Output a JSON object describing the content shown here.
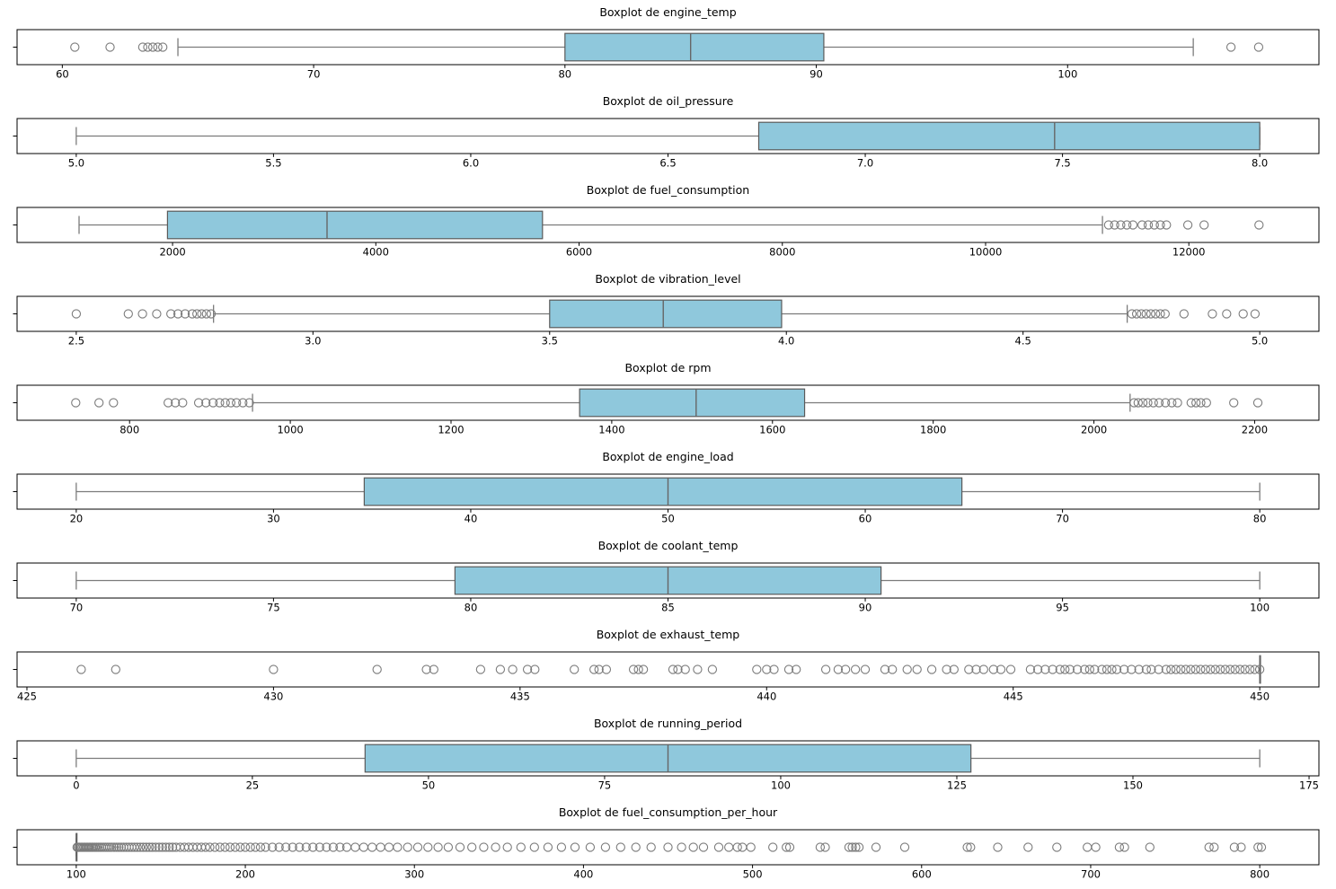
{
  "style": {
    "box_fill": "#8FC8DC",
    "box_edge": "#5a5a5a",
    "whisker_color": "#7b7b7b",
    "median_color": "#666666",
    "outlier_color": "#7b7b7b",
    "axes_border": "#000000",
    "tick_color": "#000000",
    "text_color": "#000000",
    "background": "#ffffff"
  },
  "chart_data": [
    {
      "type": "boxplot_h",
      "title": "Boxplot de engine_temp",
      "xlim": [
        58.2,
        110.0
      ],
      "tick_values": [
        60,
        70,
        80,
        90,
        100
      ],
      "tick_labels": [
        "60",
        "70",
        "80",
        "90",
        "100"
      ],
      "whisker_low": 64.6,
      "q1": 80.0,
      "median": 85.0,
      "q3": 90.3,
      "whisker_high": 105.0,
      "outliers": [
        60.5,
        61.9,
        63.2,
        63.4,
        63.6,
        63.8,
        64.0,
        106.5,
        107.6
      ]
    },
    {
      "type": "boxplot_h",
      "title": "Boxplot de oil_pressure",
      "xlim": [
        4.85,
        8.15
      ],
      "tick_values": [
        5.0,
        5.5,
        6.0,
        6.5,
        7.0,
        7.5,
        8.0
      ],
      "tick_labels": [
        "5.0",
        "5.5",
        "6.0",
        "6.5",
        "7.0",
        "7.5",
        "8.0"
      ],
      "whisker_low": 5.0,
      "q1": 6.73,
      "median": 7.48,
      "q3": 8.0,
      "whisker_high": 8.0,
      "outliers": []
    },
    {
      "type": "boxplot_h",
      "title": "Boxplot de fuel_consumption",
      "xlim": [
        470,
        13280
      ],
      "tick_values": [
        2000,
        4000,
        6000,
        8000,
        10000,
        12000
      ],
      "tick_labels": [
        "2000",
        "4000",
        "6000",
        "8000",
        "10000",
        "12000"
      ],
      "whisker_low": 1080,
      "q1": 1950,
      "median": 3520,
      "q3": 5640,
      "whisker_high": 11150,
      "outliers": [
        11210,
        11270,
        11330,
        11390,
        11450,
        11540,
        11600,
        11660,
        11720,
        11780,
        11990,
        12150,
        12690
      ]
    },
    {
      "type": "boxplot_h",
      "title": "Boxplot de vibration_level",
      "xlim": [
        2.375,
        5.125
      ],
      "tick_values": [
        2.5,
        3.0,
        3.5,
        4.0,
        4.5,
        5.0
      ],
      "tick_labels": [
        "2.5",
        "3.0",
        "3.5",
        "4.0",
        "4.5",
        "5.0"
      ],
      "whisker_low": 2.79,
      "q1": 3.5,
      "median": 3.74,
      "q3": 3.99,
      "whisker_high": 4.72,
      "outliers": [
        2.5,
        2.61,
        2.64,
        2.67,
        2.7,
        2.715,
        2.73,
        2.745,
        2.755,
        2.765,
        2.775,
        2.785,
        4.73,
        4.74,
        4.75,
        4.76,
        4.77,
        4.78,
        4.79,
        4.8,
        4.84,
        4.9,
        4.93,
        4.965,
        4.99
      ]
    },
    {
      "type": "boxplot_h",
      "title": "Boxplot de rpm",
      "xlim": [
        660,
        2280
      ],
      "tick_values": [
        800,
        1000,
        1200,
        1400,
        1600,
        1800,
        2000,
        2200
      ],
      "tick_labels": [
        "800",
        "1000",
        "1200",
        "1400",
        "1600",
        "1800",
        "2000",
        "2200"
      ],
      "whisker_low": 953,
      "q1": 1360,
      "median": 1505,
      "q3": 1640,
      "whisker_high": 2045,
      "outliers": [
        733,
        762,
        780,
        848,
        857,
        866,
        886,
        895,
        904,
        912,
        919,
        926,
        933,
        941,
        949,
        2050,
        2055,
        2061,
        2067,
        2074,
        2081,
        2089,
        2097,
        2104,
        2121,
        2127,
        2133,
        2140,
        2174,
        2204
      ]
    },
    {
      "type": "boxplot_h",
      "title": "Boxplot de engine_load",
      "xlim": [
        17,
        83
      ],
      "tick_values": [
        20,
        30,
        40,
        50,
        60,
        70,
        80
      ],
      "tick_labels": [
        "20",
        "30",
        "40",
        "50",
        "60",
        "70",
        "80"
      ],
      "whisker_low": 20,
      "q1": 34.6,
      "median": 50.0,
      "q3": 64.9,
      "whisker_high": 80,
      "outliers": []
    },
    {
      "type": "boxplot_h",
      "title": "Boxplot de coolant_temp",
      "xlim": [
        68.5,
        101.5
      ],
      "tick_values": [
        70,
        75,
        80,
        85,
        90,
        95,
        100
      ],
      "tick_labels": [
        "70",
        "75",
        "80",
        "85",
        "90",
        "95",
        "100"
      ],
      "whisker_low": 70,
      "q1": 79.6,
      "median": 85.0,
      "q3": 90.4,
      "whisker_high": 100,
      "outliers": []
    },
    {
      "type": "boxplot_h",
      "title": "Boxplot de exhaust_temp",
      "xlim": [
        424.8,
        451.2
      ],
      "tick_values": [
        425,
        430,
        435,
        440,
        445,
        450
      ],
      "tick_labels": [
        "425",
        "430",
        "435",
        "440",
        "445",
        "450"
      ],
      "whisker_low": 450,
      "q1": 450,
      "median": 450,
      "q3": 450,
      "whisker_high": 450,
      "outliers": [
        426.1,
        426.8,
        430.0,
        432.1,
        433.1,
        433.25,
        434.2,
        434.6,
        434.85,
        435.15,
        435.3,
        436.1,
        436.5,
        436.6,
        436.75,
        437.3,
        437.4,
        437.5,
        438.1,
        438.2,
        438.35,
        438.6,
        438.9,
        439.8,
        440.0,
        440.15,
        440.45,
        440.6,
        441.2,
        441.45,
        441.6,
        441.8,
        442.0,
        442.4,
        442.55,
        442.85,
        443.05,
        443.35,
        443.65,
        443.8,
        444.1,
        444.25,
        444.4,
        444.6,
        444.75,
        444.95,
        445.35,
        445.5,
        445.65,
        445.8,
        445.95,
        446.05,
        446.15,
        446.3,
        446.45,
        446.55,
        446.65,
        446.8,
        446.9,
        447.0,
        447.1,
        447.25,
        447.4,
        447.55,
        447.7,
        447.8,
        447.95,
        448.1,
        448.2,
        448.3,
        448.4,
        448.5,
        448.6,
        448.7,
        448.8,
        448.9,
        449.0,
        449.1,
        449.2,
        449.3,
        449.4,
        449.5,
        449.6,
        449.7,
        449.8,
        449.9,
        450.0
      ]
    },
    {
      "type": "boxplot_h",
      "title": "Boxplot de running_period",
      "xlim": [
        -8.4,
        176.4
      ],
      "tick_values": [
        0,
        25,
        50,
        75,
        100,
        125,
        150,
        175
      ],
      "tick_labels": [
        "0",
        "25",
        "50",
        "75",
        "100",
        "125",
        "150",
        "175"
      ],
      "whisker_low": 0,
      "q1": 41,
      "median": 84,
      "q3": 127,
      "whisker_high": 168,
      "outliers": []
    },
    {
      "type": "boxplot_h",
      "title": "Boxplot de fuel_consumption_per_hour",
      "xlim": [
        65,
        835
      ],
      "tick_values": [
        100,
        200,
        300,
        400,
        500,
        600,
        700,
        800
      ],
      "tick_labels": [
        "100",
        "200",
        "300",
        "400",
        "500",
        "600",
        "700",
        "800"
      ],
      "whisker_low": 100,
      "q1": 100,
      "median": 100,
      "q3": 100,
      "whisker_high": 100,
      "outliers": [
        100.5,
        101.2,
        102,
        102.8,
        103.6,
        104.4,
        105.2,
        106,
        106.8,
        107.6,
        108.4,
        109.2,
        110,
        111,
        112,
        113,
        114,
        115,
        116.2,
        117.4,
        118.6,
        119.8,
        121,
        122.4,
        123.8,
        125.2,
        126.6,
        128,
        129.6,
        131.2,
        132.8,
        134.4,
        136,
        137.8,
        139.6,
        141.4,
        143.2,
        145,
        147,
        149,
        151,
        153,
        155,
        157,
        159,
        161.5,
        164,
        166.5,
        169,
        171.5,
        174,
        176.5,
        179,
        182,
        185,
        188,
        191,
        194,
        197,
        200,
        203,
        206,
        209,
        212,
        216,
        220,
        224,
        228,
        232,
        236,
        240,
        244,
        248,
        252,
        256,
        260,
        265,
        270,
        275,
        280,
        285,
        290,
        296,
        302,
        308,
        314,
        320,
        327,
        334,
        341,
        348,
        355,
        363,
        371,
        379,
        387,
        395,
        404,
        413,
        422,
        431,
        440,
        450,
        458,
        465,
        471,
        480,
        486,
        491,
        494,
        499,
        512,
        520,
        522,
        540,
        543,
        557,
        559,
        561,
        563,
        573,
        590,
        627,
        629,
        645,
        663,
        680,
        698,
        703,
        717,
        720,
        735,
        770,
        773,
        785,
        789,
        799,
        801
      ]
    }
  ]
}
